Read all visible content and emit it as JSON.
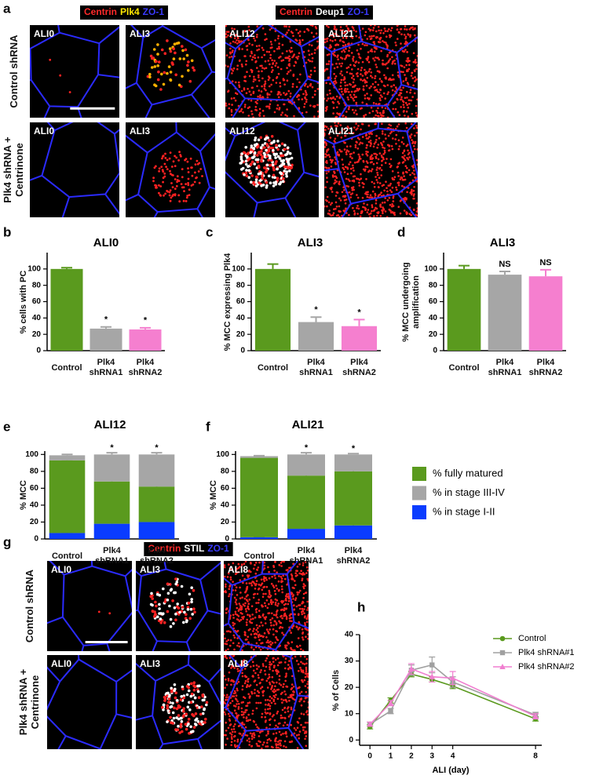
{
  "panel_a": {
    "letter": "a",
    "stains_left": [
      {
        "text": "Centrin",
        "color": "#ff2a2a"
      },
      {
        "text": "Plk4",
        "color": "#ffe800"
      },
      {
        "text": "ZO-1",
        "color": "#3a3aff"
      }
    ],
    "stains_right": [
      {
        "text": "Centrin",
        "color": "#ff2a2a"
      },
      {
        "text": "Deup1",
        "color": "#ffffff"
      },
      {
        "text": "ZO-1",
        "color": "#3a3aff"
      }
    ],
    "row_labels": [
      "Control shRNA",
      "Plk4 shRNA + Centrinone"
    ],
    "image_labels": [
      [
        "ALI0",
        "ALI3",
        "ALI12",
        "ALI21"
      ],
      [
        "ALI0",
        "ALI3",
        "ALI12",
        "ALI21"
      ]
    ]
  },
  "panel_g": {
    "letter": "g",
    "stains": [
      {
        "text": "Centrin",
        "color": "#ff2a2a"
      },
      {
        "text": "STIL",
        "color": "#ffffff"
      },
      {
        "text": "ZO-1",
        "color": "#3a3aff"
      }
    ],
    "row_labels": [
      "Control shRNA",
      "Plk4 shRNA + Centrinone"
    ],
    "image_labels": [
      [
        "ALI0",
        "ALI3",
        "ALI8"
      ],
      [
        "ALI0",
        "ALI3",
        "ALI8"
      ]
    ]
  },
  "chart_data": [
    {
      "type": "bar",
      "label": "b",
      "title": "ALI0",
      "y_label": "% cells with PC",
      "categories": [
        "Control",
        "Plk4 shRNA1",
        "Plk4 shRNA2"
      ],
      "values": [
        100,
        27,
        26
      ],
      "errors": [
        1.5,
        2,
        2
      ],
      "significance": [
        null,
        "*",
        "*"
      ],
      "colors": [
        "#5a9a1e",
        "#a6a6a6",
        "#f57fcf"
      ],
      "ylim": [
        0,
        120
      ],
      "yticks": [
        0,
        20,
        40,
        60,
        80,
        100
      ]
    },
    {
      "type": "bar",
      "label": "c",
      "title": "ALI3",
      "y_label": "% MCC  expressing Plk4",
      "categories": [
        "Control",
        "Plk4 shRNA1",
        "Plk4 shRNA2"
      ],
      "values": [
        100,
        35,
        30
      ],
      "errors": [
        6,
        6,
        8
      ],
      "significance": [
        null,
        "*",
        "*"
      ],
      "colors": [
        "#5a9a1e",
        "#a6a6a6",
        "#f57fcf"
      ],
      "ylim": [
        0,
        120
      ],
      "yticks": [
        0,
        20,
        40,
        60,
        80,
        100
      ]
    },
    {
      "type": "bar",
      "label": "d",
      "title": "ALI3",
      "y_label": "% MCC undergoing amplification",
      "categories": [
        "Control",
        "Plk4 shRNA1",
        "Plk4 shRNA2"
      ],
      "values": [
        100,
        93,
        91
      ],
      "errors": [
        4,
        4,
        8
      ],
      "significance": [
        null,
        "NS",
        "NS"
      ],
      "colors": [
        "#5a9a1e",
        "#a6a6a6",
        "#f57fcf"
      ],
      "ylim": [
        0,
        120
      ],
      "yticks": [
        0,
        20,
        40,
        60,
        80,
        100
      ]
    },
    {
      "type": "stacked_bar",
      "label": "e",
      "title": "ALI12",
      "y_label": "% MCC",
      "categories": [
        "Control",
        "Plk4 shRNA1",
        "Plk4 shRNA2"
      ],
      "series": [
        {
          "color": "#0a3cff",
          "values": [
            7,
            18,
            20
          ],
          "errors": [
            1,
            2,
            2
          ],
          "significance": [
            null,
            "*",
            "*"
          ]
        },
        {
          "color": "#5a9a1e",
          "values": [
            86,
            50,
            42
          ],
          "errors": [
            1,
            2,
            3
          ],
          "significance": [
            null,
            "*",
            "*"
          ]
        },
        {
          "color": "#a6a6a6",
          "values": [
            6,
            32,
            38
          ],
          "errors": [
            1,
            2,
            2
          ],
          "significance": [
            null,
            "*",
            "*"
          ]
        }
      ],
      "ylim": [
        0,
        104
      ],
      "yticks": [
        0,
        20,
        40,
        60,
        80,
        100
      ]
    },
    {
      "type": "stacked_bar",
      "label": "f",
      "title": "ALI21",
      "y_label": "% MCC",
      "categories": [
        "Control",
        "Plk4 shRNA1",
        "Plk4 shRNA2"
      ],
      "series": [
        {
          "name": "% in stage I-II",
          "color": "#0a3cff",
          "values": [
            2,
            12,
            16
          ],
          "errors": [
            0.5,
            2,
            1.5
          ],
          "significance": [
            null,
            "*",
            "*"
          ]
        },
        {
          "name": "% fully matured",
          "color": "#5a9a1e",
          "values": [
            94,
            63,
            64
          ],
          "errors": [
            1,
            2,
            2
          ],
          "significance": [
            null,
            "*",
            "*"
          ]
        },
        {
          "name": "% in stage III-IV",
          "color": "#a6a6a6",
          "values": [
            2,
            25,
            20
          ],
          "errors": [
            0.5,
            2,
            1
          ],
          "significance": [
            null,
            "*",
            "*"
          ]
        }
      ],
      "ylim": [
        0,
        104
      ],
      "yticks": [
        0,
        20,
        40,
        60,
        80,
        100
      ]
    },
    {
      "type": "line",
      "label": "h",
      "x_label": "ALI (day)",
      "y_label": "% of Cells",
      "x": [
        0,
        1,
        2,
        3,
        4,
        8
      ],
      "series": [
        {
          "name": "Control",
          "color": "#5a9a1e",
          "marker": "circle",
          "values": [
            5,
            15,
            25,
            23,
            20.5,
            8
          ],
          "errors": [
            0.8,
            1,
            1,
            1,
            1,
            0.8
          ]
        },
        {
          "name": "Plk4 shRNA#1",
          "color": "#a0a0a0",
          "marker": "square",
          "values": [
            6,
            11,
            26.5,
            28.5,
            22,
            9.5
          ],
          "errors": [
            0.8,
            1,
            2,
            3,
            2,
            1
          ]
        },
        {
          "name": "Plk4 shRNA#2",
          "color": "#f07fd0",
          "marker": "triangle",
          "values": [
            6,
            14,
            27,
            24,
            23.5,
            9
          ],
          "errors": [
            0.8,
            1,
            2,
            2,
            2.5,
            1
          ]
        }
      ],
      "xlim": [
        -0.5,
        8.3
      ],
      "ylim": [
        -2,
        40
      ],
      "xticks": [
        0,
        1,
        2,
        3,
        4,
        8
      ],
      "yticks": [
        0,
        10,
        20,
        30,
        40
      ]
    }
  ]
}
